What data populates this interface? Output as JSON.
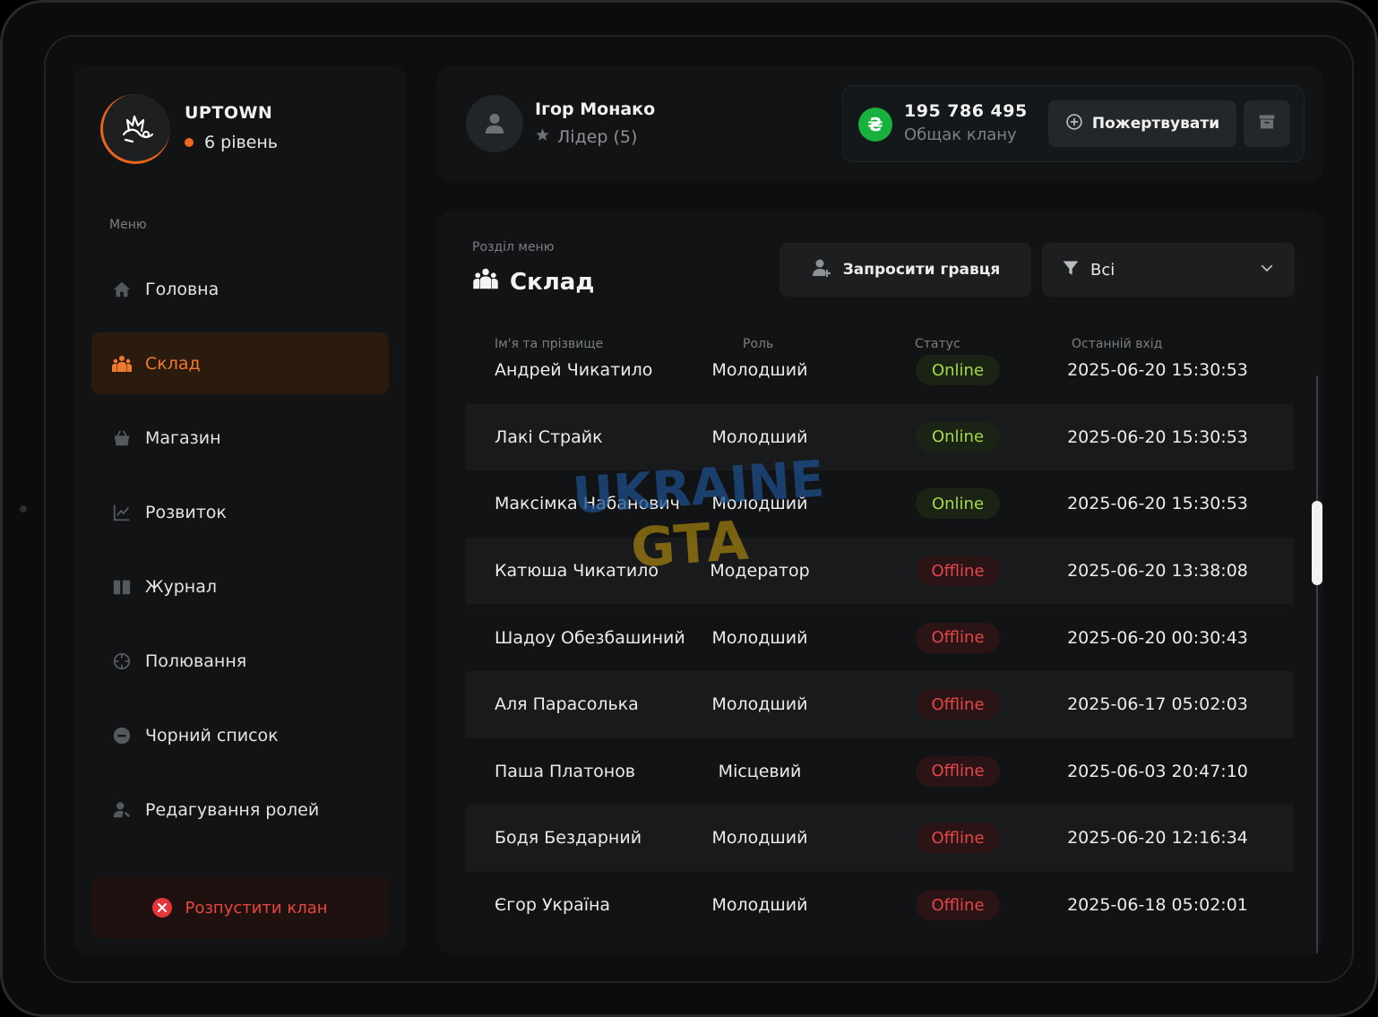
{
  "clan": {
    "name": "UPTOWN",
    "level": "6 рівень"
  },
  "sidebar": {
    "menu_caption": "Меню",
    "items": [
      {
        "label": "Головна",
        "icon": "home-icon"
      },
      {
        "label": "Склад",
        "icon": "members-icon",
        "active": true
      },
      {
        "label": "Магазин",
        "icon": "basket-icon"
      },
      {
        "label": "Розвиток",
        "icon": "chart-icon"
      },
      {
        "label": "Журнал",
        "icon": "book-icon"
      },
      {
        "label": "Полювання",
        "icon": "crosshair-icon"
      },
      {
        "label": "Чорний список",
        "icon": "minus-circle-icon"
      },
      {
        "label": "Редагування ролей",
        "icon": "user-edit-icon"
      }
    ],
    "disband_label": "Розпустити клан"
  },
  "header": {
    "player_name": "Ігор Монако",
    "player_role": "Лідер (5)",
    "bank_amount": "195 786 495",
    "bank_label": "Общак клану",
    "currency_symbol": "₴",
    "donate_label": "Пожертвувати"
  },
  "main": {
    "section_caption": "Розділ меню",
    "section_title": "Склад",
    "invite_label": "Запросити гравця",
    "filter_value": "Всі",
    "columns": [
      "Ім'я та прізвище",
      "Роль",
      "Статус",
      "Останній вхід"
    ],
    "rows": [
      {
        "name": "Андрей Чикатило",
        "role": "Молодший",
        "status": "Online",
        "last": "2025-06-20 15:30:53"
      },
      {
        "name": "Лакі Страйк",
        "role": "Молодший",
        "status": "Online",
        "last": "2025-06-20 15:30:53"
      },
      {
        "name": "Максімка Набанович",
        "role": "Молодший",
        "status": "Online",
        "last": "2025-06-20 15:30:53"
      },
      {
        "name": "Катюша Чикатило",
        "role": "Модератор",
        "status": "Offline",
        "last": "2025-06-20 13:38:08"
      },
      {
        "name": "Шадоу Обезбашиний",
        "role": "Молодший",
        "status": "Offline",
        "last": "2025-06-20 00:30:43"
      },
      {
        "name": "Аля Парасолька",
        "role": "Молодший",
        "status": "Offline",
        "last": "2025-06-17 05:02:03"
      },
      {
        "name": "Паша Платонов",
        "role": "Місцевий",
        "status": "Offline",
        "last": "2025-06-03 20:47:10"
      },
      {
        "name": "Бодя Бездарний",
        "role": "Молодший",
        "status": "Offline",
        "last": "2025-06-20 12:16:34"
      },
      {
        "name": "Єгор Україна",
        "role": "Молодший",
        "status": "Offline",
        "last": "2025-06-18 05:02:01"
      }
    ]
  },
  "watermark": {
    "line1": "UKRAINE",
    "line2": "GTA"
  },
  "colors": {
    "accent": "#f07a2c",
    "online": "#a3d94a",
    "offline": "#e3474a",
    "bank": "#17b13e",
    "danger": "#e5373a"
  }
}
